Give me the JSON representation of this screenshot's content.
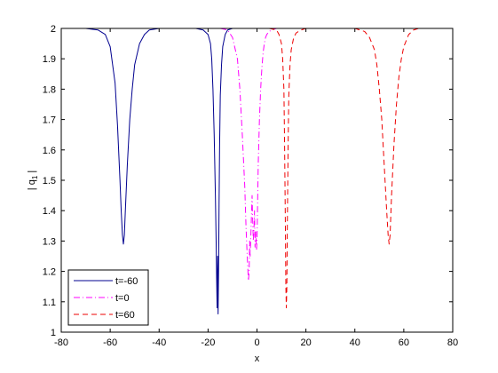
{
  "chart_data": {
    "type": "line",
    "title": "",
    "xlabel": "x",
    "ylabel": "| q",
    "ylabel_subscript": "1",
    "ylabel_suffix": " |",
    "xlim": [
      -80,
      80
    ],
    "ylim": [
      1,
      2
    ],
    "xticks": [
      -80,
      -60,
      -40,
      -20,
      0,
      20,
      40,
      60,
      80
    ],
    "yticks": [
      1,
      1.1,
      1.2,
      1.3,
      1.4,
      1.5,
      1.6,
      1.7,
      1.8,
      1.9,
      2
    ],
    "xtick_labels": [
      "-80",
      "-60",
      "-40",
      "-20",
      "0",
      "20",
      "40",
      "60",
      "80"
    ],
    "ytick_labels": [
      "1",
      "1.1",
      "1.2",
      "1.3",
      "1.4",
      "1.5",
      "1.6",
      "1.7",
      "1.8",
      "1.9",
      "2"
    ],
    "grid": false,
    "legend_position": "bottom-left",
    "series": [
      {
        "name": "t=-60",
        "color": "#00008f",
        "style": "solid",
        "x": [
          -70,
          -65,
          -62,
          -60,
          -58,
          -57,
          -56,
          -55.5,
          -55,
          -54.6,
          -54.2,
          -53.8,
          -53,
          -52,
          -51,
          -50,
          -48,
          -46,
          -44,
          -40,
          -36,
          -30,
          -25,
          -22,
          -20,
          -19,
          -18.5,
          -18,
          -17.5,
          -17,
          -16.7,
          -16.5,
          -16.3,
          -16.1,
          -15.9,
          -15.7,
          -15.5,
          -15.3,
          -15,
          -14.5,
          -14,
          -13,
          -12,
          -10,
          -8,
          -5
        ],
        "y": [
          2.0,
          1.995,
          1.98,
          1.94,
          1.82,
          1.68,
          1.5,
          1.4,
          1.32,
          1.29,
          1.32,
          1.4,
          1.55,
          1.7,
          1.8,
          1.88,
          1.95,
          1.98,
          1.995,
          2.0,
          2.0,
          2.0,
          2.0,
          1.995,
          1.98,
          1.95,
          1.9,
          1.8,
          1.65,
          1.45,
          1.3,
          1.18,
          1.08,
          1.25,
          1.06,
          1.2,
          1.42,
          1.6,
          1.78,
          1.88,
          1.94,
          1.98,
          1.995,
          2.0,
          2.0,
          2.0
        ]
      },
      {
        "name": "t=0",
        "color": "#ff00ff",
        "style": "dashdot",
        "x": [
          -15,
          -12,
          -10,
          -8,
          -7,
          -6,
          -5,
          -4.5,
          -4,
          -3.5,
          -3.2,
          -3,
          -2.8,
          -2.5,
          -2.2,
          -2,
          -1.8,
          -1.5,
          -1.2,
          -1,
          -0.8,
          -0.5,
          -0.2,
          0,
          0.2,
          0.5,
          1,
          1.5,
          2,
          2.5,
          3,
          3.5,
          4,
          5,
          6,
          8,
          10,
          12
        ],
        "y": [
          2.0,
          1.995,
          1.97,
          1.9,
          1.8,
          1.65,
          1.48,
          1.35,
          1.25,
          1.17,
          1.2,
          1.3,
          1.25,
          1.32,
          1.4,
          1.45,
          1.38,
          1.3,
          1.35,
          1.4,
          1.28,
          1.33,
          1.27,
          1.3,
          1.4,
          1.55,
          1.7,
          1.8,
          1.87,
          1.92,
          1.95,
          1.97,
          1.98,
          1.99,
          1.995,
          2.0,
          2.0,
          2.0
        ]
      },
      {
        "name": "t=60",
        "color": "#ee0000",
        "style": "dashed",
        "x": [
          5,
          8,
          9,
          10,
          10.5,
          11,
          11.3,
          11.6,
          11.8,
          12,
          12.2,
          12.4,
          12.7,
          13,
          13.5,
          14,
          15,
          16,
          18,
          20,
          24,
          30,
          36,
          40,
          44,
          46,
          48,
          49,
          50,
          51,
          52,
          53,
          53.6,
          54,
          54.4,
          55,
          56,
          57,
          58,
          59,
          60,
          62,
          64,
          66,
          70
        ],
        "y": [
          2.0,
          1.995,
          1.98,
          1.95,
          1.9,
          1.8,
          1.6,
          1.35,
          1.15,
          1.08,
          1.15,
          1.35,
          1.6,
          1.78,
          1.88,
          1.93,
          1.97,
          1.985,
          1.995,
          2.0,
          2.0,
          2.0,
          2.0,
          2.0,
          1.99,
          1.97,
          1.93,
          1.88,
          1.8,
          1.7,
          1.55,
          1.4,
          1.32,
          1.29,
          1.32,
          1.45,
          1.62,
          1.75,
          1.84,
          1.9,
          1.94,
          1.98,
          1.995,
          2.0,
          2.0
        ]
      }
    ]
  }
}
